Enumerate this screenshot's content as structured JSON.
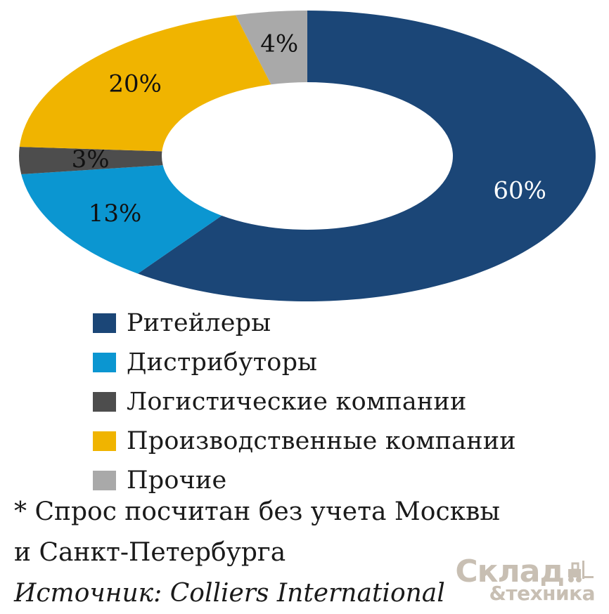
{
  "chart_data": {
    "type": "pie",
    "subtype": "donut",
    "categories": [
      "Ритейлеры",
      "Дистрибуторы",
      "Логистические компании",
      "Производственные компании",
      "Прочие"
    ],
    "values": [
      60,
      13,
      3,
      20,
      4
    ],
    "labels": [
      "60%",
      "13%",
      "3%",
      "20%",
      "4%"
    ],
    "colors": [
      "#1b4677",
      "#0b96d1",
      "#4d4d4d",
      "#f0b400",
      "#a9a9a9"
    ],
    "label_colors": [
      "#ffffff",
      "#111111",
      "#111111",
      "#111111",
      "#111111"
    ],
    "start": "12 o'clock",
    "direction": "clockwise",
    "legend_position": "bottom"
  },
  "notes": {
    "line1": "* Спрос посчитан без учета Москвы",
    "line2": "и Санкт-Петербурга",
    "source": "Источник: Colliers International"
  },
  "logo": {
    "main": "Склад",
    "sub": "&техника",
    "icon": "forklift-icon"
  }
}
